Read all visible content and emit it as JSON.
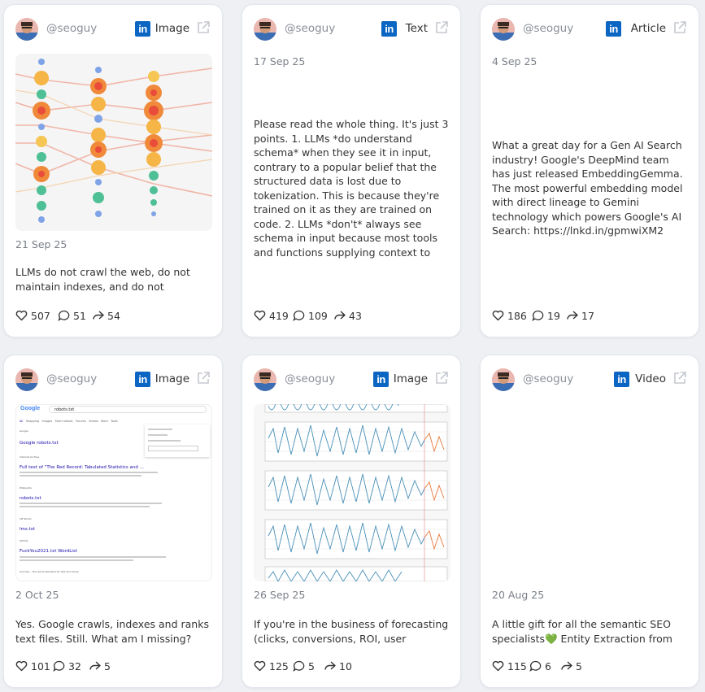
{
  "posts": [
    {
      "handle": "@seoguy",
      "type": "Image",
      "date": "21 Sep 25",
      "text": "LLMs do not crawl the web, do not maintain indexes, and do not enforce…",
      "likes": "507",
      "comments": "51",
      "shares": "54"
    },
    {
      "handle": "@seoguy",
      "type": "Text",
      "date": "17 Sep 25",
      "text": "Please read the whole thing. It's just 3 points. 1. LLMs *do understand schema* when they see it in input, contrary to a popular belief that the structured data is lost due to tokenization. This is because they're trained on it as they are trained on code. 2. LLMs *don't* always see schema in input because most tools and functions supplying context to the model strip it away during pre-processing. (Th…",
      "likes": "419",
      "comments": "109",
      "shares": "43"
    },
    {
      "handle": "@seoguy",
      "type": "Article",
      "date": "4 Sep 25",
      "text": "What a great day for a Gen AI Search industry! Google's DeepMind team has just released EmbeddingGemma. The most powerful embedding model with direct lineage to Gemini technology which powers Google's AI Search: https://lnkd.in/gpmwiXM2",
      "likes": "186",
      "comments": "19",
      "shares": "17"
    },
    {
      "handle": "@seoguy",
      "type": "Image",
      "date": "2 Oct 25",
      "text": "Yes. Google crawls, indexes and ranks text files. Still. What am I missing?",
      "likes": "101",
      "comments": "32",
      "shares": "5"
    },
    {
      "handle": "@seoguy",
      "type": "Image",
      "date": "26 Sep 25",
      "text": "If you're in the business of forecasting (clicks, conversions, ROI, user behaviour,…",
      "likes": "125",
      "comments": "5",
      "shares": "10"
    },
    {
      "handle": "@seoguy",
      "type": "Video",
      "date": "20 Aug 25",
      "text": "A little gift for all the semantic SEO specialists💚 Entity Extraction from SERP…",
      "likes": "115",
      "comments": "6",
      "shares": "5"
    }
  ],
  "linkedin_logo_text": "in",
  "serp": {
    "logo": "Google",
    "query": "robots.txt",
    "tabs": [
      "All",
      "Shopping",
      "Images",
      "Short videos",
      "Forums",
      "Videos",
      "More",
      "Tools"
    ],
    "results": [
      {
        "site": "Google",
        "title": "Google robots.txt"
      },
      {
        "site": "Internet Archive",
        "title": "Full text of \"The Red Record: Tabulated Statistics and ..."
      },
      {
        "site": "Wikipedia",
        "title": "robots.txt"
      },
      {
        "site": "LM Studio",
        "title": "lms.txt"
      },
      {
        "site": "GitHub",
        "title": "FuckYou2021.txt WordList"
      },
      {
        "site": "Unicode – The world standard for text and emoji",
        "title": ""
      }
    ]
  },
  "colors": {
    "linkedin": "#0a66c2",
    "muted": "#7a7f88",
    "text": "#333333"
  },
  "icons": [
    "avatar",
    "linkedin-icon",
    "external-link-icon",
    "heart-icon",
    "comment-icon",
    "share-icon"
  ]
}
